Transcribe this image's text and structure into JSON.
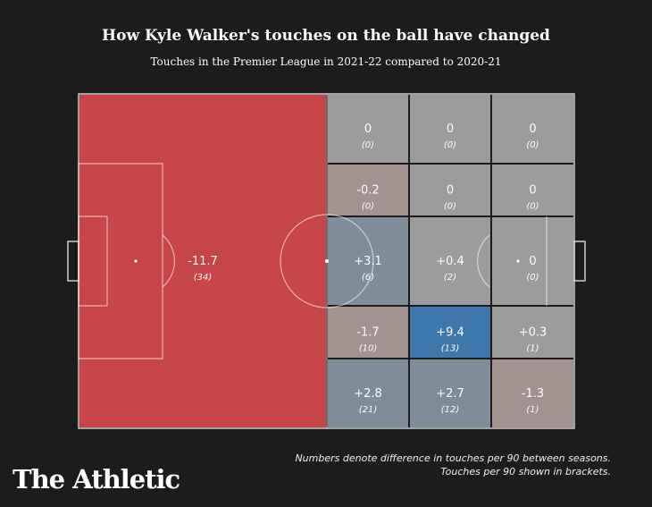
{
  "title": "How Kyle Walker's touches on the ball have changed",
  "subtitle": "Touches in the Premier League in 2021-22 compared to 2020-21",
  "footnote": {
    "line1": "Numbers denote difference in touches per 90 between seasons.",
    "line2": "Touches per 90 shown in brackets."
  },
  "brand": "The Athletic",
  "colors": {
    "background": "#1c1c1c",
    "strong_decrease": "#c74447",
    "slight_decrease": "#a1918f",
    "neutral": "#9b9b9b",
    "slight_increase": "#7f8c9a",
    "strong_increase": "#3d76aa",
    "lines": "#ffffff"
  },
  "chart_data": {
    "type": "heatmap",
    "title": "How Kyle Walker's touches on the ball have changed",
    "subtitle": "Touches in the Premier League in 2021-22 compared to 2020-21",
    "zones": [
      {
        "id": "own-half",
        "change": "-11.7",
        "touches": "(34)",
        "shade": "strong_decrease"
      },
      {
        "id": "r1c1",
        "change": "0",
        "touches": "(0)",
        "shade": "neutral"
      },
      {
        "id": "r1c2",
        "change": "0",
        "touches": "(0)",
        "shade": "neutral"
      },
      {
        "id": "r1c3",
        "change": "0",
        "touches": "(0)",
        "shade": "neutral"
      },
      {
        "id": "r2c1",
        "change": "-0.2",
        "touches": "(0)",
        "shade": "slight_decrease"
      },
      {
        "id": "r2c2",
        "change": "0",
        "touches": "(0)",
        "shade": "neutral"
      },
      {
        "id": "r2c3",
        "change": "0",
        "touches": "(0)",
        "shade": "neutral"
      },
      {
        "id": "r3c1",
        "change": "+3.1",
        "touches": "(6)",
        "shade": "slight_increase"
      },
      {
        "id": "r3c2",
        "change": "+0.4",
        "touches": "(2)",
        "shade": "neutral"
      },
      {
        "id": "r3c3",
        "change": "0",
        "touches": "(0)",
        "shade": "neutral"
      },
      {
        "id": "r4c1",
        "change": "-1.7",
        "touches": "(10)",
        "shade": "slight_decrease"
      },
      {
        "id": "r4c2",
        "change": "+9.4",
        "touches": "(13)",
        "shade": "strong_increase"
      },
      {
        "id": "r4c3",
        "change": "+0.3",
        "touches": "(1)",
        "shade": "neutral"
      },
      {
        "id": "r5c1",
        "change": "+2.8",
        "touches": "(21)",
        "shade": "slight_increase"
      },
      {
        "id": "r5c2",
        "change": "+2.7",
        "touches": "(12)",
        "shade": "slight_increase"
      },
      {
        "id": "r5c3",
        "change": "-1.3",
        "touches": "(1)",
        "shade": "slight_decrease"
      }
    ]
  }
}
